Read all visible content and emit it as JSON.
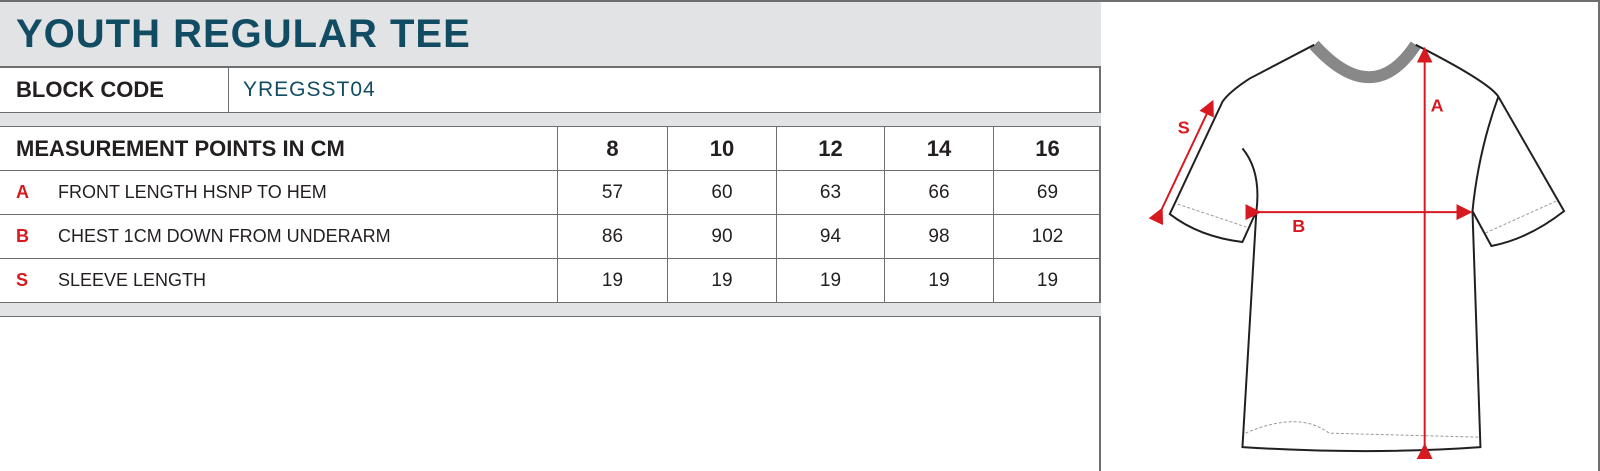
{
  "title": "YOUTH REGULAR TEE",
  "block_code": {
    "label": "BLOCK CODE",
    "value": "YREGSST04"
  },
  "table": {
    "header": "MEASUREMENT POINTS IN CM",
    "sizes": [
      "8",
      "10",
      "12",
      "14",
      "16"
    ],
    "rows": [
      {
        "code": "A",
        "label": "FRONT LENGTH HSNP TO HEM",
        "values": [
          "57",
          "60",
          "63",
          "66",
          "69"
        ]
      },
      {
        "code": "B",
        "label": "CHEST 1CM DOWN FROM UNDERARM",
        "values": [
          "86",
          "90",
          "94",
          "98",
          "102"
        ]
      },
      {
        "code": "S",
        "label": "SLEEVE LENGTH",
        "values": [
          "19",
          "19",
          "19",
          "19",
          "19"
        ]
      }
    ]
  },
  "diagram": {
    "labels": {
      "a": "A",
      "b": "B",
      "s": "S"
    },
    "arrow_color": "#d71920"
  },
  "colors": {
    "title": "#114c62",
    "band": "#e2e3e4",
    "accent": "#d71920"
  }
}
